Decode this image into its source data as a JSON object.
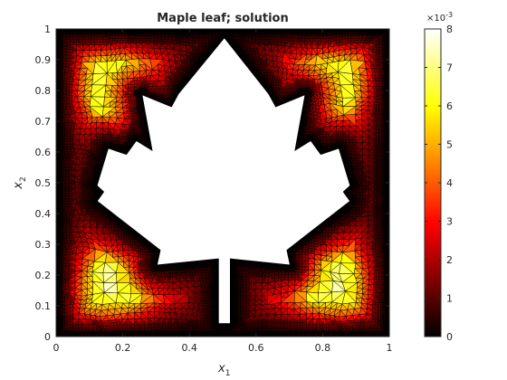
{
  "chart_data": {
    "type": "heatmap",
    "title": "Maple leaf; solution",
    "xlabel": "x",
    "xlabel_sub": "1",
    "ylabel": "x",
    "ylabel_sub": "2",
    "xlim": [
      0,
      1
    ],
    "ylim": [
      0,
      1
    ],
    "xticks": [
      0,
      0.2,
      0.4,
      0.6,
      0.8,
      1
    ],
    "xtick_labels": [
      "0",
      "0.2",
      "0.4",
      "0.6",
      "0.8",
      "1"
    ],
    "yticks": [
      0,
      0.1,
      0.2,
      0.3,
      0.4,
      0.5,
      0.6,
      0.7,
      0.8,
      0.9,
      1
    ],
    "ytick_labels": [
      "0",
      "0.1",
      "0.2",
      "0.3",
      "0.4",
      "0.5",
      "0.6",
      "0.7",
      "0.8",
      "0.9",
      "1"
    ],
    "colorbar": {
      "colormap": "hot",
      "range": [
        0,
        0.008
      ],
      "ticks": [
        0,
        1,
        2,
        3,
        4,
        5,
        6,
        7,
        8
      ],
      "tick_labels": [
        "0",
        "1",
        "2",
        "3",
        "4",
        "5",
        "6",
        "7",
        "8"
      ],
      "exponent_base": "×10",
      "exponent_power": "-3"
    },
    "hole_outline": [
      [
        0.485,
        0.04
      ],
      [
        0.485,
        0.25
      ],
      [
        0.3,
        0.23
      ],
      [
        0.31,
        0.28
      ],
      [
        0.12,
        0.44
      ],
      [
        0.14,
        0.47
      ],
      [
        0.12,
        0.49
      ],
      [
        0.155,
        0.615
      ],
      [
        0.21,
        0.595
      ],
      [
        0.24,
        0.64
      ],
      [
        0.285,
        0.61
      ],
      [
        0.255,
        0.79
      ],
      [
        0.345,
        0.75
      ],
      [
        0.365,
        0.79
      ],
      [
        0.505,
        0.975
      ],
      [
        0.64,
        0.79
      ],
      [
        0.66,
        0.75
      ],
      [
        0.75,
        0.79
      ],
      [
        0.72,
        0.61
      ],
      [
        0.765,
        0.64
      ],
      [
        0.795,
        0.595
      ],
      [
        0.85,
        0.615
      ],
      [
        0.885,
        0.49
      ],
      [
        0.865,
        0.47
      ],
      [
        0.885,
        0.44
      ],
      [
        0.695,
        0.28
      ],
      [
        0.705,
        0.23
      ],
      [
        0.525,
        0.25
      ],
      [
        0.525,
        0.04
      ]
    ],
    "hot_spots": [
      {
        "x": 0.17,
        "y": 0.82,
        "value": 0.0079
      },
      {
        "x": 0.84,
        "y": 0.83,
        "value": 0.0073
      },
      {
        "x": 0.16,
        "y": 0.15,
        "value": 0.0077
      },
      {
        "x": 0.84,
        "y": 0.16,
        "value": 0.0078
      }
    ],
    "colors": {
      "mesh_edges": "#000000",
      "axes": "#262626",
      "background": "#ffffff"
    },
    "grid": false
  }
}
